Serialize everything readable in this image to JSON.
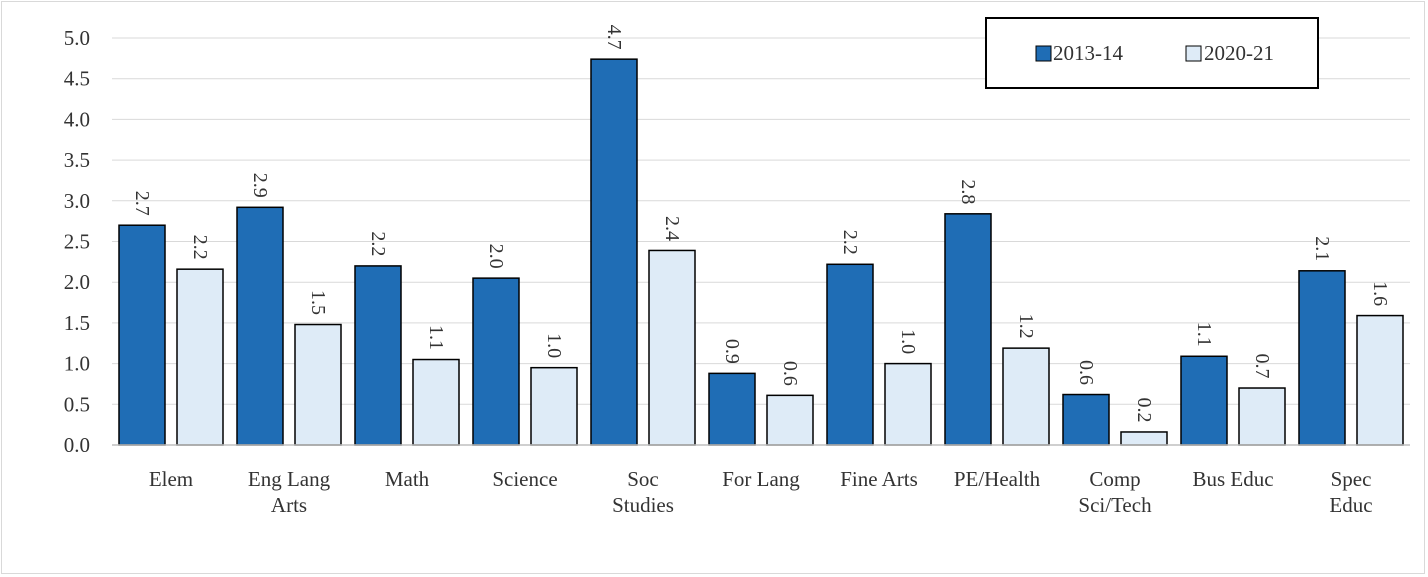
{
  "chart_data": {
    "type": "bar",
    "categories": [
      [
        "Elem"
      ],
      [
        "Eng Lang",
        "Arts"
      ],
      [
        "Math"
      ],
      [
        "Science"
      ],
      [
        "Soc",
        "Studies"
      ],
      [
        "For Lang"
      ],
      [
        "Fine Arts"
      ],
      [
        "PE/Health"
      ],
      [
        "Comp",
        "Sci/Tech"
      ],
      [
        "Bus Educ"
      ],
      [
        "Spec",
        "Educ"
      ]
    ],
    "series": [
      {
        "name": "2013-14",
        "color": "#1f6db5",
        "values": [
          2.7,
          2.92,
          2.2,
          2.05,
          4.74,
          0.88,
          2.22,
          2.84,
          0.62,
          1.09,
          2.14
        ],
        "labels": [
          "2.7",
          "2.9",
          "2.2",
          "2.0",
          "4.7",
          "0.9",
          "2.2",
          "2.8",
          "0.6",
          "1.1",
          "2.1"
        ]
      },
      {
        "name": "2020-21",
        "color": "#deebf7",
        "values": [
          2.16,
          1.48,
          1.05,
          0.95,
          2.39,
          0.61,
          1.0,
          1.19,
          0.16,
          0.7,
          1.59
        ],
        "labels": [
          "2.2",
          "1.5",
          "1.1",
          "1.0",
          "2.4",
          "0.6",
          "1.0",
          "1.2",
          "0.2",
          "0.7",
          "1.6"
        ]
      }
    ],
    "yticks": [
      "0.0",
      "0.5",
      "1.0",
      "1.5",
      "2.0",
      "2.5",
      "3.0",
      "3.5",
      "4.0",
      "4.5",
      "5.0"
    ],
    "ylim": [
      0,
      5.0
    ],
    "grid": true,
    "legend_position": "top-right"
  }
}
